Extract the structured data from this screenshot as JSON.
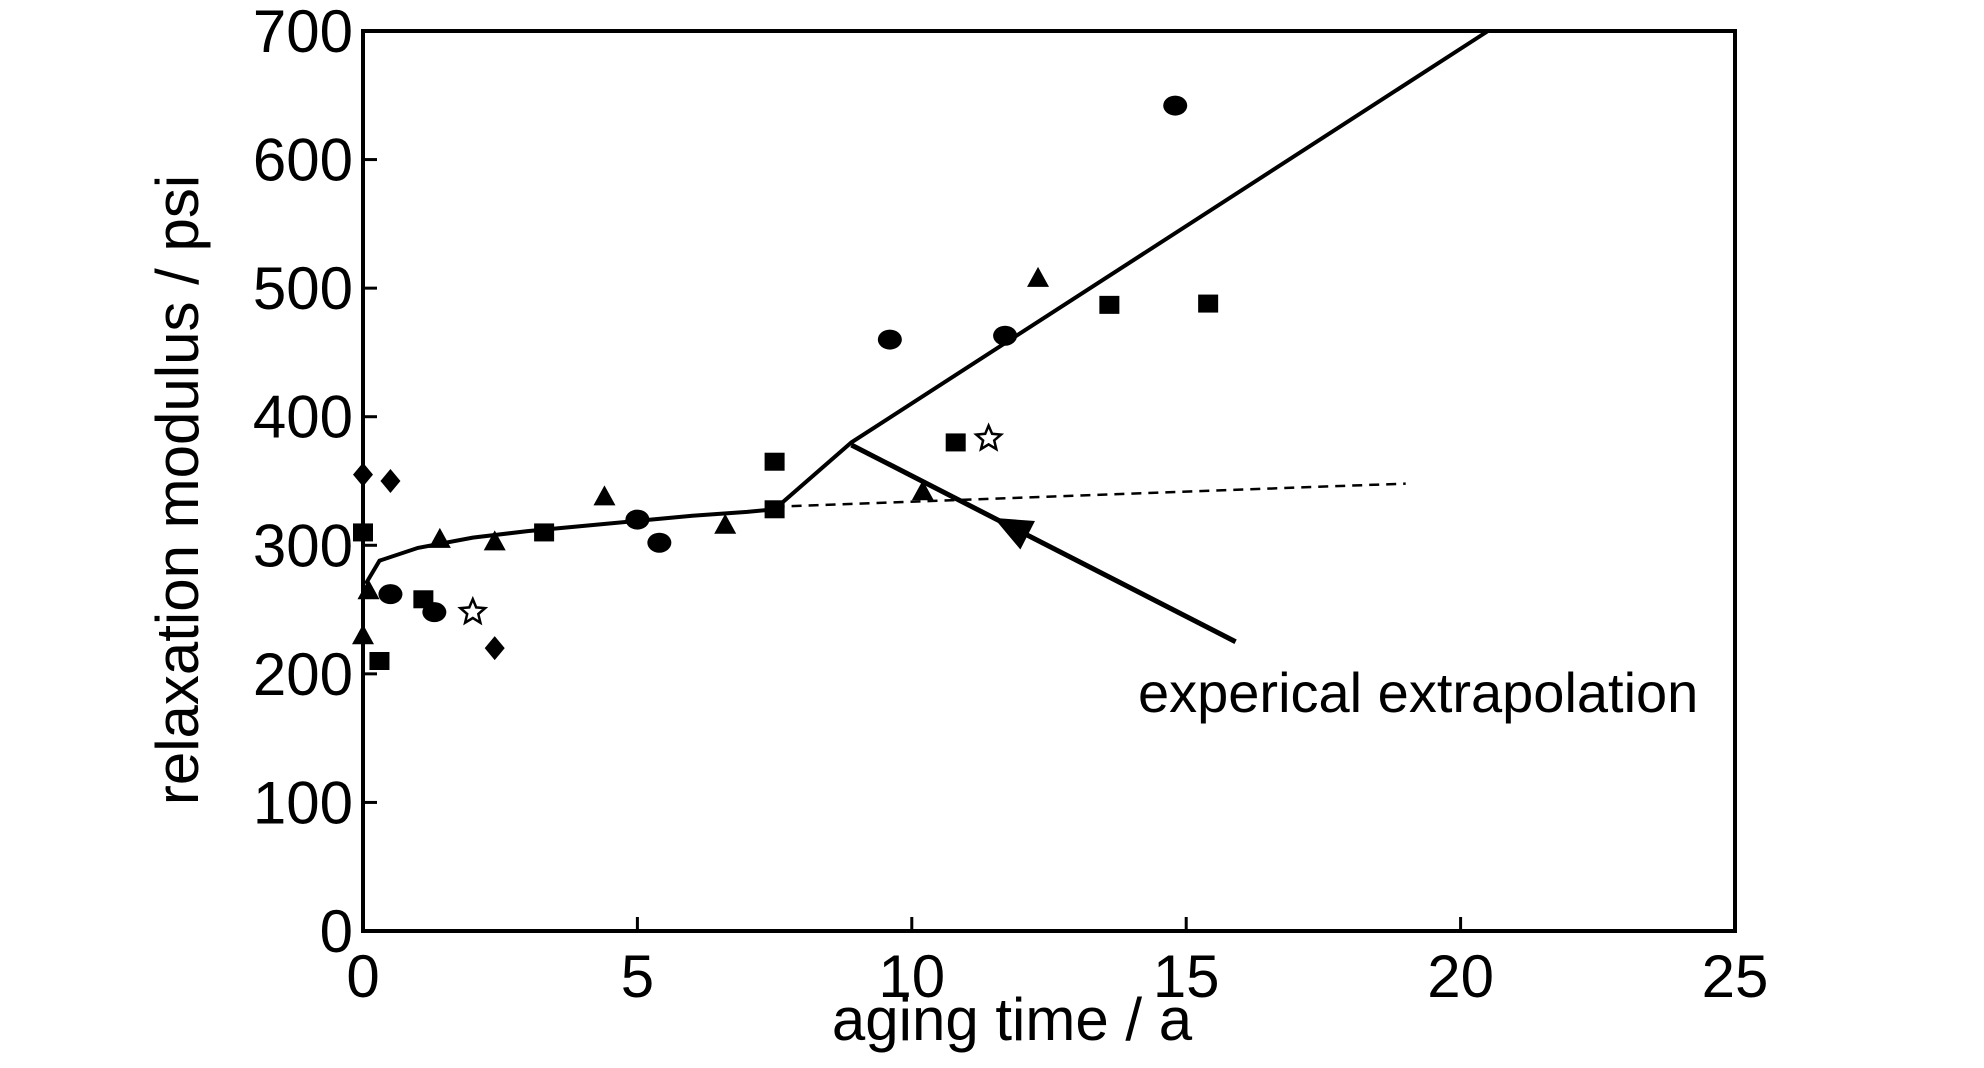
{
  "chart_data": {
    "type": "scatter",
    "title": "",
    "xlabel": "aging time / a",
    "ylabel": "relaxation modulus / psi",
    "xlim": [
      0,
      25
    ],
    "ylim": [
      0,
      700
    ],
    "x_ticks": [
      0,
      5,
      10,
      15,
      20,
      25
    ],
    "y_ticks": [
      0,
      100,
      200,
      300,
      400,
      500,
      600,
      700
    ],
    "x_tick_labels": [
      "0",
      "5",
      "10",
      "15",
      "20",
      "25"
    ],
    "y_tick_labels": [
      "0",
      "100",
      "200",
      "300",
      "400",
      "500",
      "600",
      "700"
    ],
    "grid": false,
    "legend": "none",
    "series": [
      {
        "marker": "square",
        "points": [
          [
            0.0,
            310
          ],
          [
            0.3,
            210
          ],
          [
            1.1,
            258
          ],
          [
            3.3,
            310
          ],
          [
            7.5,
            365
          ],
          [
            7.5,
            328
          ],
          [
            10.8,
            380
          ],
          [
            13.6,
            487
          ],
          [
            15.4,
            488
          ]
        ]
      },
      {
        "marker": "circle",
        "points": [
          [
            0.5,
            262
          ],
          [
            1.3,
            248
          ],
          [
            5.0,
            320
          ],
          [
            5.4,
            302
          ],
          [
            9.6,
            460
          ],
          [
            11.7,
            463
          ],
          [
            14.8,
            642
          ]
        ]
      },
      {
        "marker": "triangle",
        "points": [
          [
            0.0,
            230
          ],
          [
            0.1,
            265
          ],
          [
            1.4,
            305
          ],
          [
            2.4,
            303
          ],
          [
            4.4,
            338
          ],
          [
            6.6,
            316
          ],
          [
            10.2,
            342
          ],
          [
            12.3,
            508
          ]
        ]
      },
      {
        "marker": "diamond",
        "points": [
          [
            0.0,
            355
          ],
          [
            0.5,
            350
          ],
          [
            2.4,
            220
          ]
        ]
      },
      {
        "marker": "star",
        "points": [
          [
            2.0,
            248
          ],
          [
            11.4,
            383
          ]
        ]
      }
    ],
    "lines": [
      {
        "style": "solid",
        "points": [
          [
            0.05,
            270
          ],
          [
            0.3,
            288
          ],
          [
            1,
            298
          ],
          [
            2,
            306
          ],
          [
            3,
            311
          ],
          [
            4,
            315
          ],
          [
            5,
            319
          ],
          [
            6,
            323
          ],
          [
            7,
            326
          ],
          [
            7.5,
            328
          ],
          [
            8.9,
            380
          ],
          [
            20.5,
            700
          ]
        ]
      },
      {
        "style": "dashed",
        "points": [
          [
            7.5,
            330
          ],
          [
            19,
            348
          ]
        ]
      }
    ],
    "annotations": [
      {
        "text": "experical extrapolation",
        "arrow_from": [
          15.9,
          225
        ],
        "arrow_to": [
          8.9,
          378
        ]
      }
    ]
  }
}
